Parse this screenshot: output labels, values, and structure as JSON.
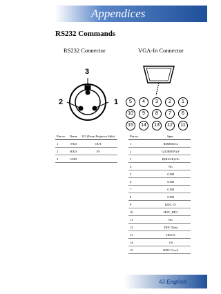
{
  "header": {
    "section": "Appendices"
  },
  "title": "RS232 Commands",
  "rs232": {
    "heading": "RS232 Connector",
    "pins": [
      "3",
      "2",
      "1"
    ],
    "table": {
      "columns": [
        "Pin no.",
        "Name",
        "I/O (From Projector Side)"
      ],
      "rows": [
        [
          "1",
          "TXD",
          "OUT"
        ],
        [
          "2",
          "RXD",
          "IN"
        ],
        [
          "3",
          "GND"
        ]
      ]
    }
  },
  "vga": {
    "heading": "VGA-In Connector",
    "pin_rows": [
      [
        "5",
        "4",
        "3",
        "2",
        "1"
      ],
      [
        "10",
        "9",
        "8",
        "7",
        "6"
      ],
      [
        "15",
        "14",
        "13",
        "12",
        "11"
      ]
    ],
    "table": {
      "columns": [
        "Pin no.",
        "Spec."
      ],
      "rows": [
        [
          "1",
          "R(RED)/Cr"
        ],
        [
          "2",
          "G(GREEN)/Y"
        ],
        [
          "3",
          "B(BLUE)/Cb"
        ],
        [
          "4",
          "NC"
        ],
        [
          "5",
          "GND"
        ],
        [
          "6",
          "GND"
        ],
        [
          "7",
          "GND"
        ],
        [
          "8",
          "GND"
        ],
        [
          "9",
          "DDC 5V"
        ],
        [
          "10",
          "HOT_DET"
        ],
        [
          "11",
          "NC"
        ],
        [
          "12",
          "DDC Data"
        ],
        [
          "13",
          "HS/CS"
        ],
        [
          "14",
          "VS"
        ],
        [
          "15",
          "DDC Clock"
        ]
      ]
    }
  },
  "footer": {
    "page": "43",
    "language": "English"
  }
}
